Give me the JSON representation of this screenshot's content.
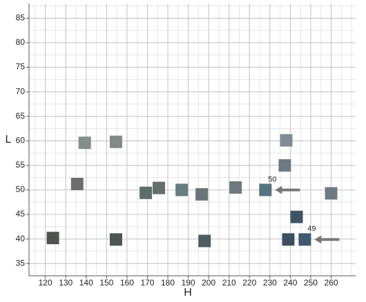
{
  "chart_data": {
    "type": "scatter",
    "x_label": "H",
    "y_label": "L",
    "x": [
      123.7,
      135.6,
      139.3,
      154.6,
      154.6,
      169.2,
      175.6,
      186.8,
      196.6,
      198.0,
      213.2,
      227.8,
      238.0,
      237.3,
      243.1,
      239.0,
      247.1,
      260.0
    ],
    "y": [
      40.2,
      51.2,
      59.6,
      59.8,
      39.9,
      49.4,
      50.4,
      50.0,
      49.1,
      39.6,
      50.5,
      50.0,
      60.1,
      55.0,
      44.5,
      39.9,
      39.9,
      49.3
    ],
    "colors": [
      "#4f5350",
      "#6b6e6c",
      "#858e8b",
      "#7f8a89",
      "#4d5553",
      "#5c6e6b",
      "#65706e",
      "#667e7f",
      "#6a7679",
      "#4b5d5f",
      "#6b7a7c",
      "#587483",
      "#7f8c94",
      "#6c7a82",
      "#3f5566",
      "#3d5060",
      "#3e5a70",
      "#6c7a85"
    ],
    "xlim": [
      112,
      272
    ],
    "ylim": [
      32.5,
      88
    ],
    "xticks": [
      120,
      130,
      140,
      150,
      160,
      170,
      180,
      190,
      200,
      210,
      220,
      230,
      240,
      250,
      260
    ],
    "yticks": [
      35,
      40,
      45,
      50,
      55,
      60,
      65,
      70,
      75,
      80,
      85
    ],
    "grid": true,
    "annotations": [
      "50",
      "49"
    ]
  }
}
